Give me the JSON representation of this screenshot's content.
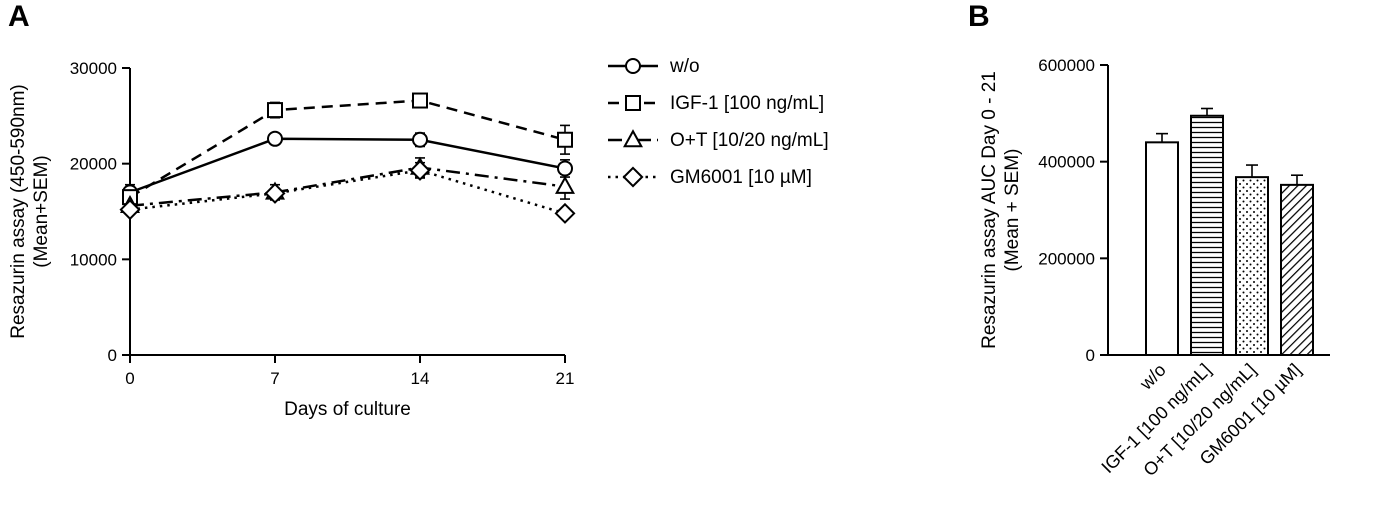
{
  "figure": {
    "panel_a_label": "A",
    "panel_b_label": "B",
    "ink_color": "#000000",
    "background_color": "#ffffff"
  },
  "chart_data": [
    {
      "type": "line",
      "panel": "A",
      "x": [
        0,
        7,
        14,
        21
      ],
      "xticks": [
        0,
        7,
        14,
        21
      ],
      "xlabel": "Days of culture",
      "ylabel_line1": "Resazurin assay (450-590nm)",
      "ylabel_line2": "(Mean+SEM)",
      "ylim": [
        0,
        30000
      ],
      "yticks": [
        0,
        10000,
        20000,
        30000
      ],
      "grid": false,
      "legend_position": "right",
      "series": [
        {
          "name": "w/o",
          "marker": "circle",
          "line": "solid",
          "values": [
            17000,
            22600,
            22500,
            19500
          ],
          "sem": [
            800,
            500,
            700,
            900
          ]
        },
        {
          "name": "IGF-1 [100 ng/mL]",
          "marker": "square",
          "line": "dashed",
          "values": [
            16500,
            25600,
            26600,
            22500
          ],
          "sem": [
            600,
            800,
            700,
            1500
          ]
        },
        {
          "name": "O+T [10/20 ng/mL]",
          "marker": "triangle",
          "line": "dashdot",
          "values": [
            15600,
            17000,
            19600,
            17600
          ],
          "sem": [
            500,
            800,
            1000,
            1300
          ]
        },
        {
          "name": "GM6001 [10 µM]",
          "marker": "diamond",
          "line": "dotted",
          "values": [
            15200,
            16900,
            19300,
            14800
          ],
          "sem": [
            400,
            500,
            800,
            400
          ]
        }
      ]
    },
    {
      "type": "bar",
      "panel": "B",
      "categories": [
        "w/o",
        "IGF-1 [100 ng/mL]",
        "O+T [10/20 ng/mL]",
        "GM6001 [10 µM]"
      ],
      "values": [
        440000,
        495000,
        368000,
        352000
      ],
      "sem": [
        18000,
        15000,
        25000,
        20000
      ],
      "patterns": [
        "solid-white",
        "horizontal-lines",
        "dots",
        "diagonal-lines"
      ],
      "ylabel_line1": "Resazurin assay AUC Day 0 - 21",
      "ylabel_line2": "(Mean + SEM)",
      "ylim": [
        0,
        600000
      ],
      "yticks": [
        0,
        200000,
        400000,
        600000
      ],
      "grid": false
    }
  ]
}
